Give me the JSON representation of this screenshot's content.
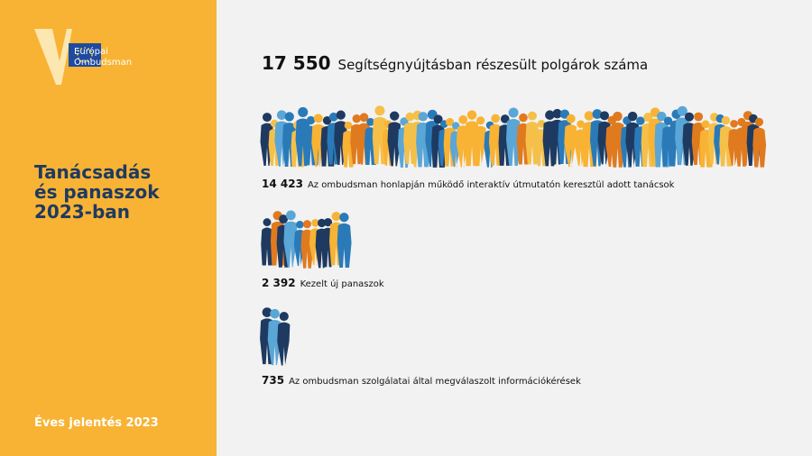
{
  "logo": {
    "line1": "Európai",
    "line2": "Ombudsman"
  },
  "sidebar": {
    "title_lines": [
      "Tanácsadás",
      "és panaszok",
      "2023-ban"
    ],
    "footer": "Éves jelentés 2023"
  },
  "headline": {
    "number": "17 550",
    "text": "Segítségnyújtásban részesült polgárok száma"
  },
  "items": [
    {
      "number": "14 423",
      "text": "Az ombudsman honlapján működő interaktív útmutatón keresztül adott tanácsok"
    },
    {
      "number": "2 392",
      "text": "Kezelt új panaszok"
    },
    {
      "number": "735",
      "text": "Az ombudsman szolgálatai által megválaszolt információkérések"
    }
  ]
}
